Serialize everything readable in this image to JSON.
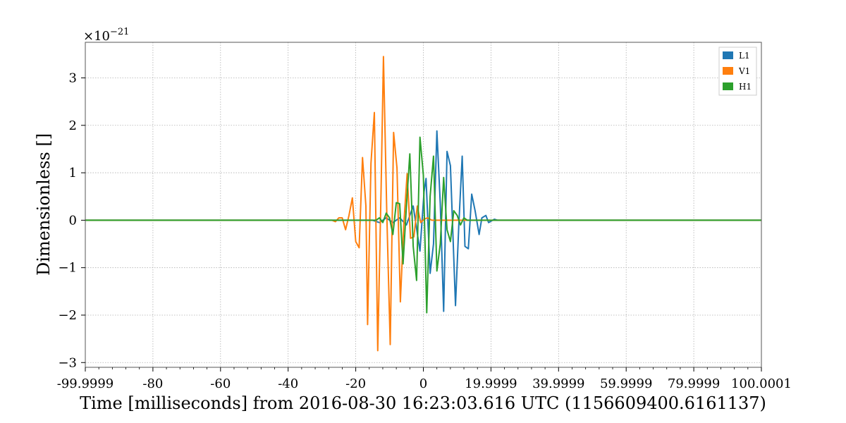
{
  "chart_data": {
    "type": "line",
    "title": "",
    "xlabel": "Time [milliseconds] from 2016-08-30 16:23:03.616 UTC (1156609400.6161137)",
    "ylabel": "Dimensionless []",
    "y_multiplier": "×10",
    "y_exponent": "−21",
    "xlim": [
      -100,
      100
    ],
    "ylim": [
      -3.1,
      3.75
    ],
    "x_ticks": [
      {
        "value": -100,
        "label": "-99.9999"
      },
      {
        "value": -80,
        "label": "-80"
      },
      {
        "value": -60,
        "label": "-60"
      },
      {
        "value": -40,
        "label": "-40"
      },
      {
        "value": -20,
        "label": "-20"
      },
      {
        "value": 0,
        "label": "0"
      },
      {
        "value": 20,
        "label": "19.9999"
      },
      {
        "value": 40,
        "label": "39.9999"
      },
      {
        "value": 60,
        "label": "59.9999"
      },
      {
        "value": 80,
        "label": "79.9999"
      },
      {
        "value": 100,
        "label": "100.0001"
      }
    ],
    "y_ticks": [
      {
        "value": -3,
        "label": "−3"
      },
      {
        "value": -2,
        "label": "−2"
      },
      {
        "value": -1,
        "label": "−1"
      },
      {
        "value": 0,
        "label": "0"
      },
      {
        "value": 1,
        "label": "1"
      },
      {
        "value": 2,
        "label": "2"
      },
      {
        "value": 3,
        "label": "3"
      }
    ],
    "grid": true,
    "legend_position": "top-right",
    "series": [
      {
        "name": "L1",
        "color": "#1f77b4",
        "points": [
          [
            -100,
            0
          ],
          [
            -15,
            0
          ],
          [
            -13,
            -0.05
          ],
          [
            -11,
            0.05
          ],
          [
            -9,
            -0.05
          ],
          [
            -7,
            0.05
          ],
          [
            -5,
            -0.1
          ],
          [
            -3,
            0.3
          ],
          [
            -1,
            -0.65
          ],
          [
            0.2,
            0.6
          ],
          [
            0.8,
            0.88
          ],
          [
            2,
            -1.12
          ],
          [
            3,
            -0.5
          ],
          [
            4,
            1.88
          ],
          [
            5,
            0.35
          ],
          [
            6,
            -1.92
          ],
          [
            7,
            1.45
          ],
          [
            8,
            1.15
          ],
          [
            9.5,
            -1.8
          ],
          [
            10.5,
            -0.1
          ],
          [
            11.5,
            1.35
          ],
          [
            12.3,
            -0.55
          ],
          [
            13.3,
            -0.6
          ],
          [
            14.3,
            0.55
          ],
          [
            15.3,
            0.2
          ],
          [
            16.5,
            -0.3
          ],
          [
            17.3,
            0.05
          ],
          [
            18.5,
            0.1
          ],
          [
            19.3,
            -0.05
          ],
          [
            20.5,
            0
          ],
          [
            21,
            0.02
          ],
          [
            22,
            0
          ],
          [
            100,
            0
          ]
        ]
      },
      {
        "name": "V1",
        "color": "#ff7f0e",
        "points": [
          [
            -100,
            0
          ],
          [
            -27,
            0
          ],
          [
            -26,
            -0.03
          ],
          [
            -25,
            0.05
          ],
          [
            -24,
            0.05
          ],
          [
            -23,
            -0.2
          ],
          [
            -22,
            0.1
          ],
          [
            -21,
            0.47
          ],
          [
            -20,
            -0.45
          ],
          [
            -19,
            -0.58
          ],
          [
            -18,
            1.32
          ],
          [
            -17,
            0.3
          ],
          [
            -16.5,
            -2.2
          ],
          [
            -15.5,
            1.2
          ],
          [
            -14.5,
            2.27
          ],
          [
            -13.5,
            -2.75
          ],
          [
            -12.5,
            0.7
          ],
          [
            -11.8,
            3.45
          ],
          [
            -10.8,
            0.1
          ],
          [
            -9.8,
            -2.62
          ],
          [
            -8.8,
            1.85
          ],
          [
            -7.8,
            1.1
          ],
          [
            -6.8,
            -1.72
          ],
          [
            -5.8,
            -0.1
          ],
          [
            -4.8,
            0.98
          ],
          [
            -3.8,
            -0.38
          ],
          [
            -2.8,
            -0.35
          ],
          [
            -1.8,
            0.3
          ],
          [
            -0.8,
            -0.05
          ],
          [
            0.2,
            0.02
          ],
          [
            1.2,
            0.05
          ],
          [
            2.5,
            0
          ],
          [
            100,
            0
          ]
        ]
      },
      {
        "name": "H1",
        "color": "#2ca02c",
        "points": [
          [
            -100,
            0
          ],
          [
            -16,
            0
          ],
          [
            -14,
            0
          ],
          [
            -13,
            0.05
          ],
          [
            -12,
            -0.05
          ],
          [
            -11,
            0.15
          ],
          [
            -10,
            0.05
          ],
          [
            -9,
            -0.3
          ],
          [
            -8,
            0.37
          ],
          [
            -7,
            0.35
          ],
          [
            -6,
            -0.92
          ],
          [
            -5,
            0.3
          ],
          [
            -4,
            1.4
          ],
          [
            -3,
            -0.55
          ],
          [
            -2,
            -1.27
          ],
          [
            -1,
            1.75
          ],
          [
            0,
            0.95
          ],
          [
            1,
            -1.95
          ],
          [
            2,
            0.5
          ],
          [
            3,
            1.35
          ],
          [
            4,
            -1.07
          ],
          [
            5,
            -0.5
          ],
          [
            6,
            0.9
          ],
          [
            7,
            -0.2
          ],
          [
            8,
            -0.45
          ],
          [
            9,
            0.2
          ],
          [
            10,
            0.1
          ],
          [
            11,
            -0.1
          ],
          [
            12,
            0.05
          ],
          [
            13,
            0
          ],
          [
            100,
            0
          ]
        ]
      }
    ]
  }
}
